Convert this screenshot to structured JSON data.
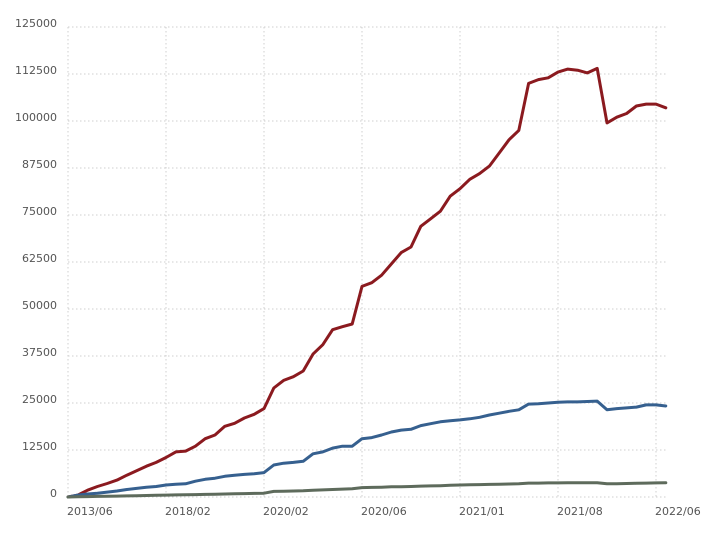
{
  "chart_data": {
    "type": "line",
    "categories": [
      "2013/06",
      null,
      null,
      null,
      null,
      null,
      null,
      null,
      null,
      null,
      "2018/02",
      null,
      null,
      null,
      null,
      null,
      null,
      null,
      null,
      null,
      "2020/02",
      null,
      null,
      null,
      null,
      null,
      null,
      null,
      null,
      null,
      "2020/06",
      null,
      null,
      null,
      null,
      null,
      null,
      null,
      null,
      null,
      "2021/01",
      null,
      null,
      null,
      null,
      null,
      null,
      null,
      null,
      null,
      "2021/08",
      null,
      null,
      null,
      null,
      null,
      null,
      null,
      null,
      null,
      "2022/06",
      null
    ],
    "series": [
      {
        "color": "#8b1a1f",
        "values": [
          0,
          500,
          1800,
          2800,
          3600,
          4500,
          5800,
          7000,
          8200,
          9200,
          10500,
          12000,
          12200,
          13500,
          15500,
          16500,
          18800,
          19600,
          21000,
          22000,
          23500,
          29000,
          31000,
          32000,
          33500,
          38000,
          40500,
          44500,
          45300,
          46000,
          56000,
          57000,
          59000,
          62000,
          65000,
          66500,
          72000,
          74000,
          76000,
          80000,
          82000,
          84500,
          86000,
          88000,
          91500,
          95000,
          97500,
          110000,
          111000,
          111500,
          113000,
          113800,
          113500,
          112800,
          114000,
          99500,
          101000,
          102000,
          104000,
          104500,
          104500,
          103500
        ]
      },
      {
        "color": "#36608f",
        "values": [
          0,
          500,
          800,
          1000,
          1300,
          1600,
          2000,
          2300,
          2600,
          2800,
          3200,
          3400,
          3500,
          4200,
          4700,
          5000,
          5500,
          5800,
          6000,
          6200,
          6500,
          8500,
          9000,
          9200,
          9500,
          11500,
          12000,
          13000,
          13500,
          13500,
          15500,
          15800,
          16500,
          17300,
          17800,
          18000,
          19000,
          19500,
          20000,
          20300,
          20500,
          20800,
          21200,
          21800,
          22300,
          22800,
          23200,
          24700,
          24800,
          25000,
          25200,
          25300,
          25300,
          25400,
          25500,
          23200,
          23500,
          23700,
          23900,
          24500,
          24500,
          24200
        ]
      },
      {
        "color": "#5e6b5c",
        "values": [
          0,
          50,
          100,
          150,
          200,
          250,
          300,
          350,
          400,
          450,
          500,
          550,
          600,
          650,
          700,
          750,
          800,
          850,
          900,
          950,
          1000,
          1500,
          1550,
          1600,
          1650,
          1800,
          1900,
          2000,
          2100,
          2200,
          2500,
          2550,
          2600,
          2700,
          2750,
          2800,
          2900,
          2950,
          3000,
          3100,
          3200,
          3250,
          3300,
          3350,
          3400,
          3450,
          3500,
          3700,
          3700,
          3750,
          3750,
          3800,
          3800,
          3800,
          3800,
          3500,
          3550,
          3600,
          3650,
          3700,
          3750,
          3800
        ]
      }
    ],
    "ylim": [
      0,
      125000
    ],
    "yticks": [
      0,
      12500,
      25000,
      37500,
      50000,
      62500,
      75000,
      87500,
      100000,
      112500,
      125000
    ],
    "grid": true
  }
}
